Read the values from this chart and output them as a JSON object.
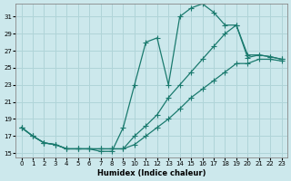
{
  "xlabel": "Humidex (Indice chaleur)",
  "bg_color": "#cce8ec",
  "grid_color": "#b0d4d8",
  "line_color": "#1a7a6e",
  "xlim": [
    -0.5,
    23.5
  ],
  "ylim": [
    14.5,
    32.5
  ],
  "xticks": [
    0,
    1,
    2,
    3,
    4,
    5,
    6,
    7,
    8,
    9,
    10,
    11,
    12,
    13,
    14,
    15,
    16,
    17,
    18,
    19,
    20,
    21,
    22,
    23
  ],
  "yticks": [
    15,
    17,
    19,
    21,
    23,
    25,
    27,
    29,
    31
  ],
  "line1_x": [
    0,
    1,
    2,
    3,
    4,
    5,
    6,
    7,
    8,
    9,
    10,
    11,
    12,
    13,
    14,
    15,
    16,
    17,
    18,
    19,
    20,
    21,
    22,
    23
  ],
  "line1_y": [
    18.0,
    17.0,
    16.2,
    16.0,
    15.5,
    15.5,
    15.5,
    15.2,
    15.2,
    18.0,
    23.0,
    28.0,
    28.5,
    23.0,
    31.0,
    32.0,
    32.5,
    31.5,
    30.0,
    30.0,
    26.5,
    26.5,
    26.3,
    26.0
  ],
  "line2_x": [
    0,
    1,
    2,
    3,
    4,
    5,
    6,
    7,
    8,
    9,
    10,
    11,
    12,
    13,
    14,
    15,
    16,
    17,
    18,
    19,
    20,
    21,
    22,
    23
  ],
  "line2_y": [
    18.0,
    17.0,
    16.2,
    16.0,
    15.5,
    15.5,
    15.5,
    15.5,
    15.5,
    15.5,
    17.0,
    18.2,
    19.5,
    21.5,
    23.0,
    24.5,
    26.0,
    27.5,
    29.0,
    30.0,
    26.2,
    26.5,
    26.3,
    26.0
  ],
  "line3_x": [
    0,
    1,
    2,
    3,
    4,
    5,
    6,
    7,
    8,
    9,
    10,
    11,
    12,
    13,
    14,
    15,
    16,
    17,
    18,
    19,
    20,
    21,
    22,
    23
  ],
  "line3_y": [
    18.0,
    17.0,
    16.2,
    16.0,
    15.5,
    15.5,
    15.5,
    15.5,
    15.5,
    15.5,
    16.0,
    17.0,
    18.0,
    19.0,
    20.2,
    21.5,
    22.5,
    23.5,
    24.5,
    25.5,
    25.5,
    26.0,
    26.0,
    25.8
  ]
}
